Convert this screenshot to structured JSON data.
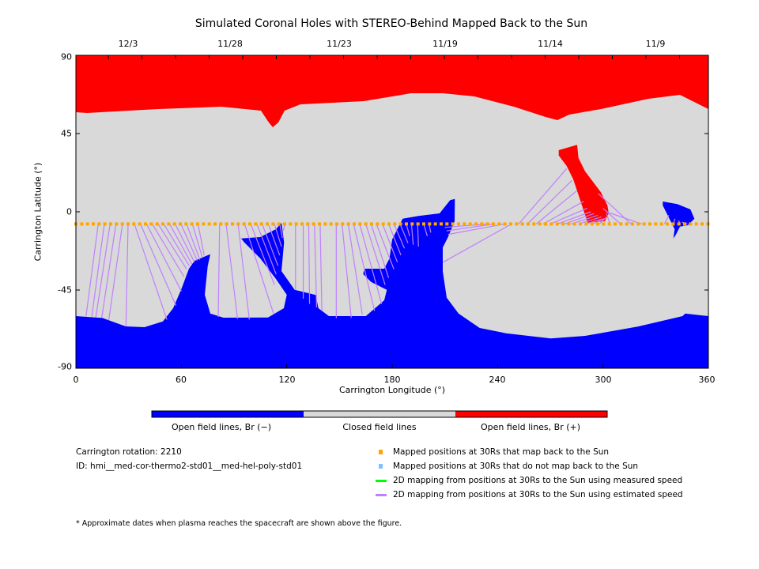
{
  "chart_data": {
    "type": "heatmap",
    "title": "Simulated Coronal Holes with STEREO-Behind Mapped Back to the Sun",
    "xlabel": "Carrington Longitude (°)",
    "ylabel": "Carrington Latitude (°)",
    "xlim": [
      0,
      360
    ],
    "ylim": [
      -90,
      90
    ],
    "xticks": [
      "0",
      "60",
      "120",
      "180",
      "240",
      "300",
      "360"
    ],
    "yticks": [
      "90",
      "45",
      "0",
      "-45",
      "-90"
    ],
    "top_dates": [
      {
        "label": "12/3",
        "lon": 30
      },
      {
        "label": "11/28",
        "lon": 88
      },
      {
        "label": "11/23",
        "lon": 150
      },
      {
        "label": "11/19",
        "lon": 210
      },
      {
        "label": "11/14",
        "lon": 270
      },
      {
        "label": "11/9",
        "lon": 330
      }
    ],
    "colorbar": [
      {
        "label": "Open field lines, Br (−)",
        "color": "#0000ff"
      },
      {
        "label": "Closed field lines",
        "color": "#d9d9d9"
      },
      {
        "label": "Open field lines, Br (+)",
        "color": "#ff0000"
      }
    ],
    "mapped_points": {
      "lat": -7,
      "lon_start": 0,
      "lon_step": 3.3,
      "count": 110,
      "color": "#ffa500"
    },
    "mapping_lines_color": "#bf80ff",
    "mapping_lines": [
      [
        12.7,
        5.7,
        -60.5
      ],
      [
        16.2,
        9,
        -60.5
      ],
      [
        19.5,
        11.3,
        -60.8
      ],
      [
        22.8,
        14.7,
        -61
      ],
      [
        26.5,
        18.7,
        -62.3
      ],
      [
        29.7,
        28.5,
        -65.8
      ],
      [
        33.3,
        51.8,
        -62
      ],
      [
        36.7,
        57,
        -54
      ],
      [
        40.2,
        60,
        -45.6
      ],
      [
        43.5,
        61.5,
        -37.3
      ],
      [
        46.8,
        63,
        -33
      ],
      [
        50,
        64.5,
        -31
      ],
      [
        53.3,
        66,
        -30
      ],
      [
        56.5,
        67.5,
        -29
      ],
      [
        59.8,
        69,
        -28
      ],
      [
        63,
        70.5,
        -27.5
      ],
      [
        66.3,
        72,
        -26.5
      ],
      [
        69.5,
        73,
        -25
      ],
      [
        81.8,
        81,
        -60.5
      ],
      [
        85.5,
        92,
        -61.6
      ],
      [
        92.3,
        98.7,
        -62
      ],
      [
        96,
        112.5,
        -58.6
      ],
      [
        99.5,
        113,
        -42
      ],
      [
        103,
        114,
        -36
      ],
      [
        106,
        115,
        -31
      ],
      [
        109.5,
        116,
        -25
      ],
      [
        113,
        117,
        -20
      ],
      [
        116,
        117.5,
        -15
      ],
      [
        119,
        118,
        -11
      ],
      [
        125,
        125,
        -44.9
      ],
      [
        129.4,
        129.4,
        -50
      ],
      [
        132.5,
        133,
        -53
      ],
      [
        135.8,
        137,
        -55
      ],
      [
        139,
        140,
        -57
      ],
      [
        148.2,
        148.2,
        -61.2
      ],
      [
        151.5,
        156.7,
        -61
      ],
      [
        155,
        163,
        -59
      ],
      [
        158,
        170,
        -57
      ],
      [
        161.5,
        174,
        -53
      ],
      [
        165,
        176,
        -42
      ],
      [
        168,
        178,
        -38
      ],
      [
        171,
        181,
        -33
      ],
      [
        174.5,
        183,
        -29
      ],
      [
        178,
        185,
        -25
      ],
      [
        181,
        187,
        -21
      ],
      [
        184.5,
        189,
        -18
      ],
      [
        188,
        190,
        -14
      ],
      [
        191,
        192,
        -19
      ],
      [
        194.5,
        195,
        -20
      ],
      [
        198,
        200,
        -14
      ],
      [
        201,
        202,
        -12
      ],
      [
        244,
        211.8,
        -13
      ],
      [
        248,
        209,
        -29
      ],
      [
        238,
        211,
        -11
      ],
      [
        234,
        210,
        -9
      ],
      [
        252,
        279.3,
        24.8
      ],
      [
        257,
        282.3,
        18
      ],
      [
        262,
        285,
        12
      ],
      [
        266,
        289,
        6
      ],
      [
        270,
        291,
        2
      ],
      [
        274,
        293,
        0
      ],
      [
        278,
        295,
        -1
      ],
      [
        282,
        297,
        -2
      ],
      [
        286,
        299,
        -3
      ],
      [
        290,
        300,
        -4
      ],
      [
        294,
        301,
        -4
      ],
      [
        298,
        302,
        -3
      ],
      [
        304,
        302,
        -1
      ],
      [
        310,
        300,
        2
      ],
      [
        316,
        297.3,
        10.5
      ],
      [
        322,
        302,
        0
      ],
      [
        335,
        337.5,
        -2
      ],
      [
        340,
        341,
        -4
      ],
      [
        344,
        343,
        -5
      ],
      [
        348,
        345,
        -6
      ]
    ],
    "notes": [
      "Carrington rotation: 2210",
      "ID: hmi__med-cor-thermo2-std01__med-hel-poly-std01"
    ],
    "legend": [
      {
        "label": "Mapped positions at 30Rs that map back to the Sun",
        "color": "#ffa500",
        "kind": "square"
      },
      {
        "label": "Mapped positions at 30Rs that do not map back to the Sun",
        "color": "#80c0ff",
        "kind": "square"
      },
      {
        "label": "2D mapping from positions at 30Rs to the Sun using measured speed",
        "color": "#00ff00",
        "kind": "line"
      },
      {
        "label": "2D mapping from positions at 30Rs to the Sun using estimated speed",
        "color": "#bf80ff",
        "kind": "line"
      }
    ],
    "footnote": "* Approximate dates when plasma reaches the spacecraft are shown above the figure."
  }
}
